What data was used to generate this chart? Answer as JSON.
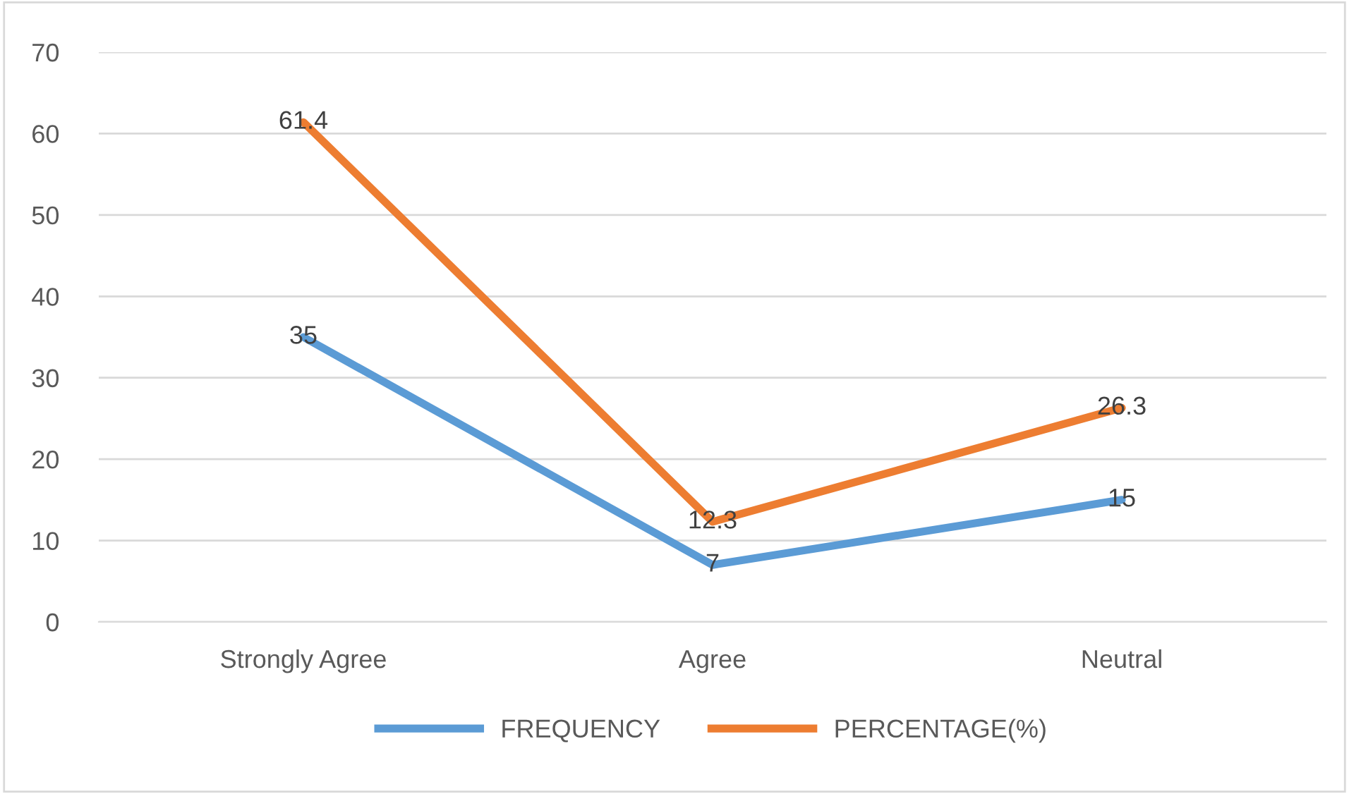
{
  "chart_data": {
    "type": "line",
    "categories": [
      "Strongly Agree",
      "Agree",
      "Neutral"
    ],
    "series": [
      {
        "name": "FREQUENCY",
        "color": "#5b9bd5",
        "values": [
          35,
          7,
          15
        ]
      },
      {
        "name": "PERCENTAGE(%)",
        "color": "#ed7d31",
        "values": [
          61.4,
          12.3,
          26.3
        ]
      }
    ],
    "ylim": [
      0,
      70
    ],
    "yticks": [
      0,
      10,
      20,
      30,
      40,
      50,
      60,
      70
    ],
    "grid": "y",
    "legend": "bottom",
    "data_labels": true,
    "marker": "none",
    "line_style": "solid"
  }
}
